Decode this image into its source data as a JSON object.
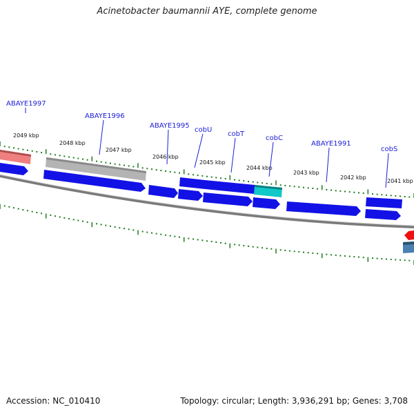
{
  "title": "Acinetobacter baumannii AYE, complete genome",
  "footer": {
    "accession": "Accession: NC_010410",
    "topology": "Topology: circular; Length: 3,936,291 bp; Genes: 3,708"
  },
  "scale_labels": [
    "2049 kbp",
    "2048 kbp",
    "2047 kbp",
    "2046 kbp",
    "2045 kbp",
    "2044 kbp",
    "2043 kbp",
    "2042 kbp",
    "2041 kbp"
  ],
  "gene_labels": [
    "ABAYE1997",
    "ABAYE1996",
    "ABAYE1995",
    "cobU",
    "cobT",
    "cobC",
    "ABAYE1991",
    "cobS"
  ],
  "colors": {
    "cds_blue": "#1212e6",
    "grey_feature": "#b4b4b4",
    "pink_feature": "#f08080",
    "cyan_feature": "#12c8c8",
    "red_feature": "#ee1111",
    "steelblue_feature": "#4a7fb0",
    "tick_green": "#1f7a1f",
    "backbone": "#7a7a7a"
  }
}
